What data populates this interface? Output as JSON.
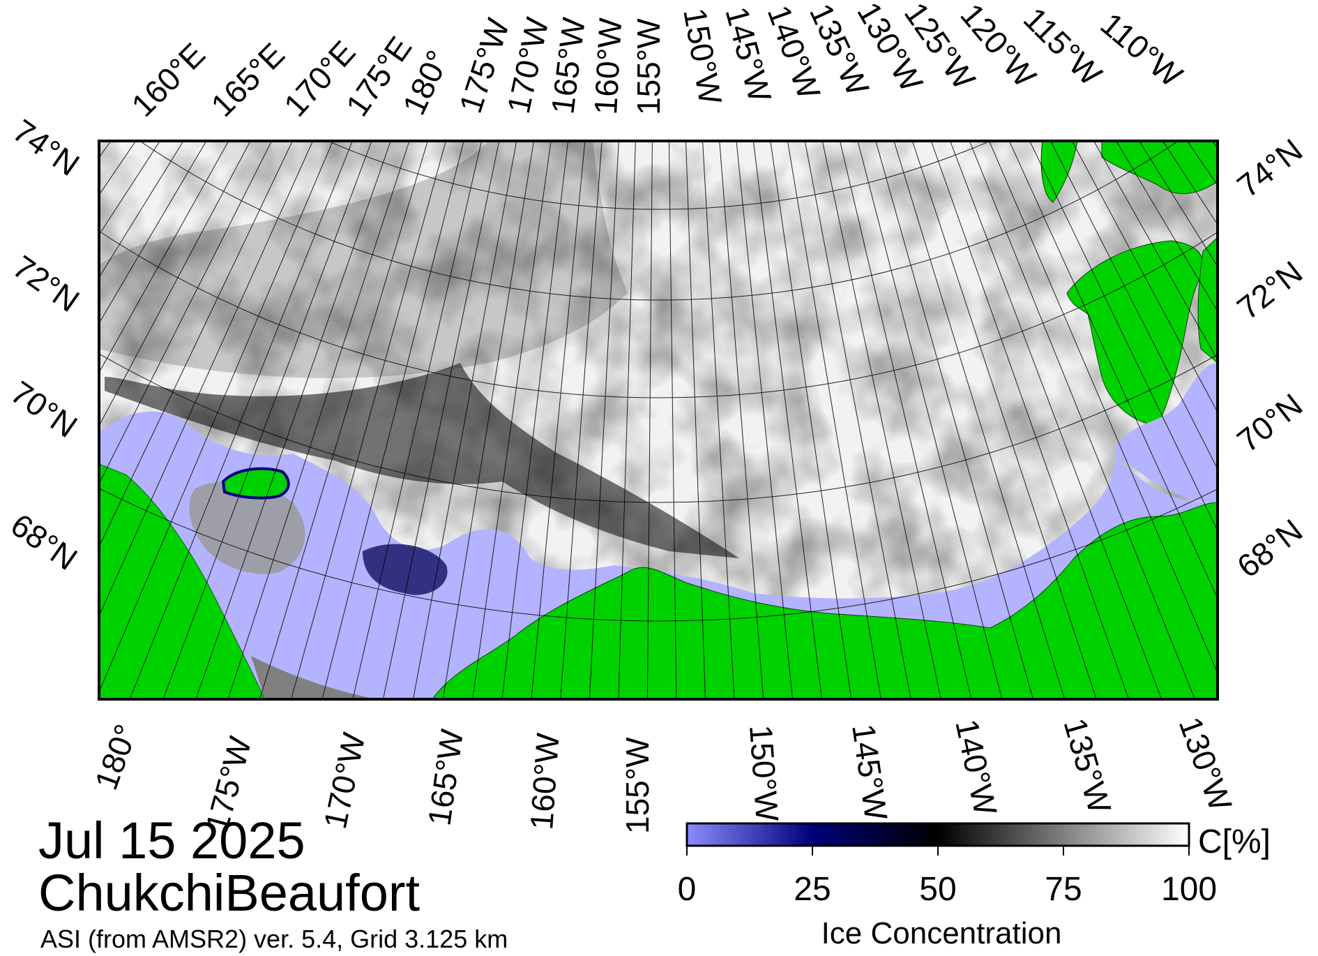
{
  "map": {
    "date": "Jul 15 2025",
    "region": "ChukchiBeaufort",
    "product": "ASI (from AMSR2) ver. 5.4,  Grid 3.125 km",
    "top_lon_labels": [
      "160°E",
      "165°E",
      "170°E",
      "175°E",
      "180°",
      "175°W",
      "170°W",
      "165°W",
      "160°W",
      "155°W",
      "150°W",
      "145°W",
      "140°W",
      "135°W",
      "130°W",
      "125°W",
      "120°W",
      "115°W",
      "110°W"
    ],
    "bottom_lon_labels": [
      "180°",
      "175°W",
      "170°W",
      "165°W",
      "160°W",
      "155°W",
      "150°W",
      "145°W",
      "140°W",
      "135°W",
      "130°W"
    ],
    "left_lat_labels": [
      "74°N",
      "72°N",
      "70°N",
      "68°N"
    ],
    "right_lat_labels": [
      "74°N",
      "72°N",
      "70°N",
      "68°N"
    ],
    "colors": {
      "land": "#00d200",
      "open_water": "#b3b3ff",
      "no_data": "#808080",
      "ice_high": "#ffffff",
      "ice_mid": "#000000",
      "ice_low": "#000060"
    }
  },
  "colorbar": {
    "unit": "C[%]",
    "title": "Ice Concentration",
    "ticks": [
      "0",
      "25",
      "50",
      "75",
      "100"
    ]
  }
}
